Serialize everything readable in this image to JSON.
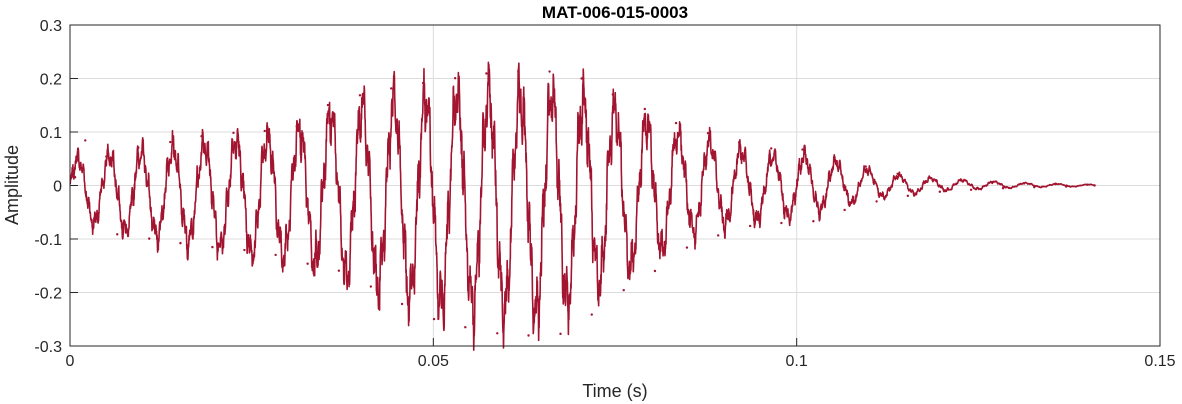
{
  "chart_data": {
    "type": "line",
    "title": "MAT-006-015-0003",
    "xlabel": "Time (s)",
    "ylabel": "Amplitude",
    "xlim": [
      0,
      0.15
    ],
    "ylim": [
      -0.3,
      0.3
    ],
    "x_ticks": [
      0,
      0.05,
      0.1,
      0.15
    ],
    "x_tick_labels": [
      "0",
      "0.05",
      "0.1",
      "0.15"
    ],
    "y_ticks": [
      0.3,
      0.2,
      0.1,
      0,
      -0.1,
      -0.2,
      -0.3
    ],
    "y_tick_labels": [
      "0.3",
      "0.2",
      "0.1",
      "0",
      "-0.1",
      "-0.2",
      "-0.3"
    ],
    "grid": true,
    "box": true,
    "series": [
      {
        "color": "#a2142f",
        "x": [
          0,
          0.005,
          0.01,
          0.015,
          0.02,
          0.025,
          0.03,
          0.035,
          0.04,
          0.045,
          0.05,
          0.055,
          0.06,
          0.065,
          0.07,
          0.075,
          0.08,
          0.085,
          0.09,
          0.095,
          0.1,
          0.105,
          0.11,
          0.115,
          0.12,
          0.125,
          0.13,
          0.135,
          0.141
        ],
        "upper": [
          0.06,
          0.07,
          0.08,
          0.09,
          0.1,
          0.11,
          0.12,
          0.16,
          0.18,
          0.19,
          0.2,
          0.21,
          0.215,
          0.215,
          0.2,
          0.17,
          0.14,
          0.11,
          0.09,
          0.07,
          0.07,
          0.055,
          0.035,
          0.02,
          0.015,
          0.01,
          0.006,
          0.004,
          0.002
        ],
        "lower": [
          -0.07,
          -0.09,
          -0.11,
          -0.12,
          -0.13,
          -0.15,
          -0.16,
          -0.18,
          -0.21,
          -0.24,
          -0.26,
          -0.27,
          -0.28,
          -0.285,
          -0.25,
          -0.2,
          -0.16,
          -0.11,
          -0.09,
          -0.075,
          -0.07,
          -0.05,
          -0.03,
          -0.02,
          -0.012,
          -0.008,
          -0.005,
          -0.003,
          -0.002
        ],
        "oscillation_hz": 230,
        "values": [
          [
            0.0007,
            0.0154
          ],
          [
            0.0021,
            0.0843
          ],
          [
            0.0036,
            -0.0623
          ],
          [
            0.005,
            0.0541
          ],
          [
            0.0065,
            -0.0913
          ],
          [
            0.0094,
            0.0706
          ],
          [
            0.0109,
            -0.0993
          ],
          [
            0.0138,
            0.0812
          ],
          [
            0.0152,
            -0.1077
          ],
          [
            0.0181,
            0.0921
          ],
          [
            0.0196,
            -0.1152
          ],
          [
            0.0225,
            0.0984
          ],
          [
            0.024,
            -0.1206
          ],
          [
            0.0268,
            0.1019
          ],
          [
            0.0283,
            -0.1297
          ],
          [
            0.0312,
            0.1105
          ],
          [
            0.0327,
            -0.1462
          ],
          [
            0.0355,
            0.1503
          ],
          [
            0.037,
            -0.1593
          ],
          [
            0.0399,
            0.1686
          ],
          [
            0.0414,
            -0.1889
          ],
          [
            0.0442,
            0.1815
          ],
          [
            0.0457,
            -0.2215
          ],
          [
            0.0486,
            0.1917
          ],
          [
            0.0501,
            -0.2497
          ],
          [
            0.053,
            0.2005
          ],
          [
            0.0544,
            -0.2649
          ],
          [
            0.0573,
            0.2094
          ],
          [
            0.0588,
            -0.2762
          ],
          [
            0.0617,
            0.2133
          ],
          [
            0.0631,
            -0.2804
          ],
          [
            0.066,
            0.213
          ],
          [
            0.0675,
            -0.2773
          ],
          [
            0.0704,
            0.2001
          ],
          [
            0.0718,
            -0.2413
          ],
          [
            0.0747,
            0.1701
          ],
          [
            0.0762,
            -0.1956
          ],
          [
            0.0791,
            0.143
          ],
          [
            0.0805,
            -0.1598
          ],
          [
            0.0834,
            0.1167
          ],
          [
            0.0849,
            -0.1161
          ],
          [
            0.0878,
            0.0977
          ],
          [
            0.0892,
            -0.0934
          ],
          [
            0.0921,
            0.0802
          ],
          [
            0.0936,
            -0.0756
          ],
          [
            0.0965,
            0.0693
          ],
          [
            0.0979,
            -0.0702
          ],
          [
            0.1008,
            0.0672
          ],
          [
            0.1023,
            -0.0668
          ],
          [
            0.1052,
            0.0526
          ],
          [
            0.1066,
            -0.0457
          ],
          [
            0.1095,
            0.0353
          ],
          [
            0.111,
            -0.0297
          ],
          [
            0.1139,
            0.0218
          ],
          [
            0.1153,
            -0.0193
          ],
          [
            0.1182,
            0.0148
          ],
          [
            0.1197,
            -0.0117
          ],
          [
            0.1226,
            0.0095
          ],
          [
            0.124,
            -0.008
          ],
          [
            0.1269,
            0.0065
          ],
          [
            0.1284,
            -0.0051
          ],
          [
            0.1313,
            0.0038
          ],
          [
            0.1327,
            -0.0031
          ],
          [
            0.1356,
            0.0025
          ],
          [
            0.1371,
            -0.002
          ],
          [
            0.14,
            0.0015
          ],
          [
            0.141,
            0.0
          ]
        ]
      }
    ]
  }
}
